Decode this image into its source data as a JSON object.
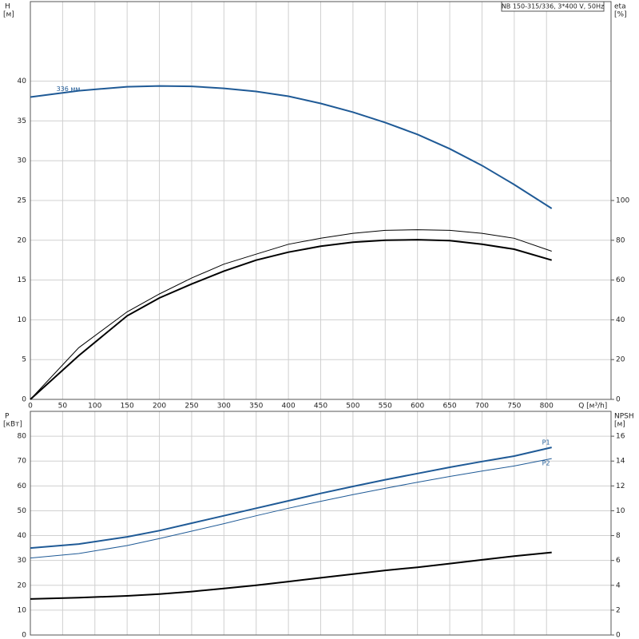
{
  "chart_data": [
    {
      "type": "line",
      "title": "NB 150-315/336, 3*400 V, 50Hz",
      "ylabel": "H",
      "yunit": "[м]",
      "y2label": "eta",
      "y2unit": "[%]",
      "xlabel": "Q [м³/h]",
      "x": [
        0,
        75,
        150,
        200,
        250,
        300,
        350,
        400,
        450,
        500,
        550,
        600,
        650,
        700,
        750,
        808
      ],
      "xlim": [
        0,
        900
      ],
      "xticks": [
        0,
        50,
        100,
        150,
        200,
        250,
        300,
        350,
        400,
        450,
        500,
        550,
        600,
        650,
        700,
        750,
        800
      ],
      "ylim": [
        0,
        50
      ],
      "yticks": [
        0,
        5,
        10,
        15,
        20,
        25,
        30,
        35,
        40
      ],
      "y2lim": [
        0,
        200
      ],
      "y2ticks": [
        0,
        20,
        40,
        60,
        80,
        100
      ],
      "grid": true,
      "series": [
        {
          "name": "336 мм",
          "color": "#1f5a96",
          "values": [
            38.0,
            38.8,
            39.3,
            39.4,
            39.35,
            39.1,
            38.7,
            38.1,
            37.2,
            36.1,
            34.8,
            33.3,
            31.5,
            29.4,
            27.0,
            24.0
          ]
        },
        {
          "color": "#000000",
          "axis": "y2",
          "values": [
            0,
            26,
            44,
            53,
            61,
            68,
            73,
            78,
            81,
            83.5,
            85,
            85.3,
            85,
            83.5,
            81,
            74.5
          ]
        },
        {
          "color": "#000000",
          "axis": "y2",
          "values": [
            0,
            22,
            42,
            51,
            58,
            64.5,
            70,
            74,
            77,
            79,
            80,
            80.3,
            79.8,
            78,
            75.5,
            70
          ]
        }
      ]
    },
    {
      "type": "line",
      "ylabel": "P",
      "yunit": "[кВт]",
      "y2label": "NPSH",
      "y2unit": "[м]",
      "x": [
        0,
        75,
        150,
        200,
        250,
        300,
        350,
        400,
        450,
        500,
        550,
        600,
        650,
        700,
        750,
        808
      ],
      "xlim": [
        0,
        900
      ],
      "xticks": [
        0,
        50,
        100,
        150,
        200,
        250,
        300,
        350,
        400,
        450,
        500,
        550,
        600,
        650,
        700,
        750,
        800
      ],
      "ylim": [
        0,
        90
      ],
      "yticks": [
        0,
        10,
        20,
        30,
        40,
        50,
        60,
        70,
        80
      ],
      "y2lim": [
        0,
        18
      ],
      "y2ticks": [
        0,
        2,
        4,
        6,
        8,
        10,
        12,
        14,
        16
      ],
      "grid": true,
      "series": [
        {
          "name": "P1",
          "color": "#1f5a96",
          "values": [
            35,
            36.6,
            39.5,
            42,
            45,
            48,
            51,
            54,
            57,
            59.8,
            62.5,
            65,
            67.5,
            69.8,
            72,
            75.5
          ]
        },
        {
          "name": "P2",
          "color": "#1f5a96",
          "values": [
            31,
            32.8,
            36,
            38.8,
            41.8,
            44.8,
            48,
            51,
            53.8,
            56.5,
            59,
            61.5,
            63.8,
            66,
            68,
            71
          ]
        },
        {
          "color": "#000000",
          "axis": "y2",
          "values": [
            2.9,
            3.0,
            3.15,
            3.3,
            3.5,
            3.75,
            4.0,
            4.3,
            4.6,
            4.9,
            5.2,
            5.45,
            5.75,
            6.05,
            6.35,
            6.65
          ]
        }
      ]
    }
  ]
}
